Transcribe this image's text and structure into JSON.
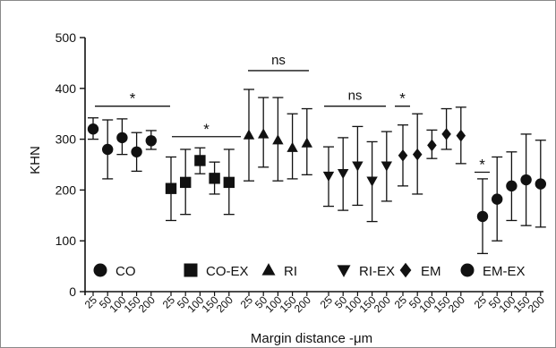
{
  "chart_data": {
    "type": "scatter",
    "title": "",
    "xlabel": "Margin distance -μm",
    "ylabel": "KHN",
    "ylim": [
      0,
      500
    ],
    "yticks": [
      0,
      100,
      200,
      300,
      400,
      500
    ],
    "categories": [
      "25",
      "50",
      "100",
      "150",
      "200"
    ],
    "grid": false,
    "legend_position": "bottom",
    "series": [
      {
        "name": "CO",
        "marker": "circle",
        "values": [
          320,
          280,
          303,
          275,
          297
        ],
        "err_low": [
          300,
          222,
          270,
          237,
          280
        ],
        "err_high": [
          342,
          338,
          340,
          313,
          317
        ]
      },
      {
        "name": "CO-EX",
        "marker": "square",
        "values": [
          203,
          215,
          258,
          223,
          215
        ],
        "err_low": [
          140,
          152,
          232,
          192,
          152
        ],
        "err_high": [
          265,
          280,
          283,
          255,
          280
        ]
      },
      {
        "name": "RI",
        "marker": "triangle-up",
        "values": [
          308,
          310,
          298,
          283,
          292
        ],
        "err_low": [
          218,
          245,
          218,
          222,
          230
        ],
        "err_high": [
          398,
          382,
          382,
          350,
          360
        ]
      },
      {
        "name": "RI-EX",
        "marker": "triangle-down",
        "values": [
          228,
          233,
          248,
          218,
          248
        ],
        "err_low": [
          168,
          160,
          170,
          138,
          178
        ],
        "err_high": [
          285,
          303,
          325,
          295,
          315
        ]
      },
      {
        "name": "EM",
        "marker": "diamond",
        "values": [
          268,
          270,
          288,
          310,
          307
        ],
        "err_low": [
          208,
          192,
          262,
          280,
          252
        ],
        "err_high": [
          328,
          350,
          318,
          360,
          363
        ]
      },
      {
        "name": "EM-EX",
        "marker": "circle",
        "values": [
          148,
          182,
          208,
          220,
          212
        ],
        "err_low": [
          75,
          100,
          140,
          130,
          127
        ],
        "err_high": [
          222,
          265,
          275,
          310,
          298
        ]
      }
    ],
    "annotations": [
      {
        "text": "*",
        "group_start": 0,
        "group_end": 1,
        "y": 365
      },
      {
        "text": "*",
        "group_start": 1,
        "group_end": 2,
        "y": 305
      },
      {
        "text": "ns",
        "group_start": 2,
        "group_end": 2,
        "y": 435
      },
      {
        "text": "ns",
        "group_start": 3,
        "group_end": 3,
        "y": 365
      },
      {
        "text": "*",
        "group_start": 4,
        "group_end": 4,
        "y": 365
      },
      {
        "text": "*",
        "group_start": 5,
        "group_end": 5,
        "y": 235
      }
    ]
  }
}
